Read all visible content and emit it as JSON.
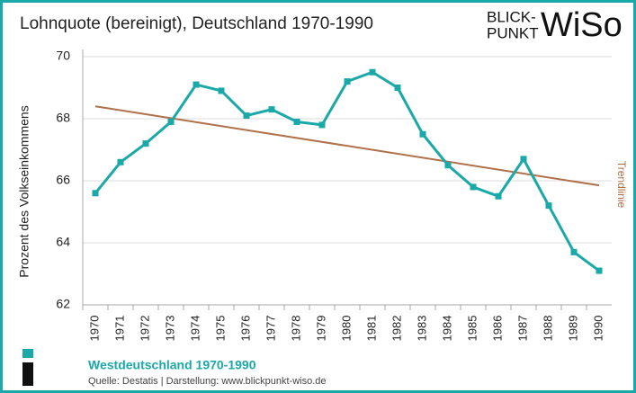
{
  "chart_data": {
    "type": "line",
    "title": "Lohnquote (bereinigt), Deutschland 1970-1990",
    "logo": {
      "line1": "BLICK-",
      "line2": "PUNKT",
      "brand": "WiSo"
    },
    "ylabel": "Prozent des Volkseinkommens",
    "categories": [
      "1970",
      "1971",
      "1972",
      "1973",
      "1974",
      "1975",
      "1976",
      "1977",
      "1978",
      "1979",
      "1980",
      "1981",
      "1982",
      "1983",
      "1984",
      "1985",
      "1986",
      "1987",
      "1988",
      "1989",
      "1990"
    ],
    "series": [
      {
        "name": "Westdeutschland 1970-1990",
        "color": "#1aa8a8",
        "values": [
          65.6,
          66.6,
          67.2,
          67.9,
          69.1,
          68.9,
          68.1,
          68.3,
          67.9,
          67.8,
          69.2,
          69.5,
          69.0,
          67.5,
          66.5,
          65.8,
          65.5,
          66.7,
          65.2,
          63.7,
          63.1
        ]
      }
    ],
    "trendline": {
      "label": "Trendlinie",
      "color": "#b0704a",
      "values": [
        68.4,
        65.85
      ]
    },
    "ylim": [
      62,
      70
    ],
    "yticks": [
      62,
      64,
      66,
      68,
      70
    ],
    "grid": true,
    "source": "Quelle: Destatis  |  Darstellung: www.blickpunkt-wiso.de"
  }
}
